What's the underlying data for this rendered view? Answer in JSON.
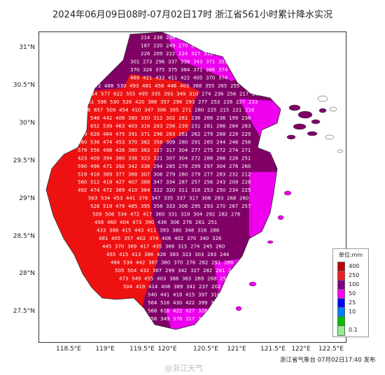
{
  "title": "2024年06月09日08时-07月02日17时 浙江省561小时累计降水实况",
  "axes": {
    "lat_labels": [
      "31°N",
      "30.5°N",
      "30°N",
      "29.5°N",
      "29°N",
      "28.5°N",
      "28°N",
      "27.5°N"
    ],
    "lon_labels": [
      "118.5°E",
      "119°E",
      "119.5°E",
      "120°E",
      "120.5°E",
      "121°E",
      "121.5°E",
      "122°E",
      "122.5°E"
    ]
  },
  "legend": {
    "title": "单位:mm",
    "items": [
      {
        "label": "400",
        "color": "#c00000"
      },
      {
        "label": "250",
        "color": "#f02020"
      },
      {
        "label": "100",
        "color": "#800080"
      },
      {
        "label": "50",
        "color": "#ff00ff"
      },
      {
        "label": "25",
        "color": "#0000ff"
      },
      {
        "label": "10",
        "color": "#0080ff"
      },
      {
        "label": "",
        "color": "#00c000"
      },
      {
        "label": "0.1",
        "color": "#90ee90"
      }
    ]
  },
  "colors": {
    "red": "#ee1111",
    "purple": "#800066",
    "magenta": "#ee00ee",
    "border": "#444444"
  },
  "station_rows": [
    {
      "row": "r31",
      "values": [
        "214",
        "238",
        "236",
        "217",
        "241"
      ]
    },
    {
      "row": "r30.7",
      "values": [
        "187",
        "220",
        "249",
        "270",
        "287",
        "265"
      ]
    },
    {
      "row": "r30.6",
      "values": [
        "226",
        "209",
        "222",
        "224",
        "327",
        "312",
        "356",
        "339"
      ]
    },
    {
      "row": "r30.5",
      "values": [
        "301",
        "273",
        "296",
        "337",
        "338",
        "343",
        "371",
        "351"
      ]
    },
    {
      "row": "r30.45",
      "values": [
        "370",
        "324",
        "375",
        "375",
        "384",
        "371",
        "386",
        "374"
      ]
    },
    {
      "row": "r30.4",
      "values": [
        "469",
        "421",
        "433",
        "411",
        "422",
        "405",
        "370",
        "374"
      ]
    },
    {
      "row": "r30.3",
      "values": [
        "472",
        "488",
        "530",
        "493",
        "481",
        "456",
        "446",
        "403",
        "368",
        "355",
        "265",
        "255",
        "246",
        "257"
      ]
    },
    {
      "row": "r30.2",
      "values": [
        "654",
        "577",
        "622",
        "555",
        "495",
        "335",
        "393",
        "349",
        "310",
        "274",
        "236",
        "256",
        "217",
        "201"
      ]
    },
    {
      "row": "r30.1",
      "values": [
        "651",
        "598",
        "530",
        "526",
        "420",
        "386",
        "357",
        "296",
        "293",
        "277",
        "253",
        "226",
        "227",
        "233"
      ]
    },
    {
      "row": "r30",
      "values": [
        "768",
        "657",
        "509",
        "454",
        "410",
        "347",
        "306",
        "305",
        "271",
        "280",
        "225",
        "215",
        "221",
        "216"
      ]
    },
    {
      "row": "r29.9",
      "values": [
        "695",
        "548",
        "442",
        "406",
        "380",
        "330",
        "312",
        "302",
        "261",
        "236",
        "266",
        "236",
        "199",
        "236"
      ]
    },
    {
      "row": "r29.8",
      "values": [
        "715",
        "652",
        "539",
        "463",
        "403",
        "316",
        "283",
        "256",
        "239",
        "231",
        "281",
        "286",
        "284",
        "283"
      ]
    },
    {
      "row": "r29.7",
      "values": [
        "619",
        "628",
        "464",
        "475",
        "391",
        "371",
        "298",
        "263",
        "261",
        "262",
        "279",
        "268",
        "229",
        "229"
      ]
    },
    {
      "row": "r29.6",
      "values": [
        "580",
        "536",
        "474",
        "453",
        "370",
        "382",
        "356",
        "309",
        "280",
        "291",
        "265",
        "244",
        "246",
        "256"
      ]
    },
    {
      "row": "r29.5",
      "values": [
        "579",
        "556",
        "498",
        "426",
        "380",
        "363",
        "317",
        "317",
        "304",
        "277",
        "275",
        "272",
        "274",
        "271"
      ]
    },
    {
      "row": "r29.4",
      "values": [
        "423",
        "409",
        "394",
        "380",
        "336",
        "323",
        "321",
        "307",
        "304",
        "272",
        "288",
        "266",
        "226",
        "251"
      ]
    },
    {
      "row": "r29.3",
      "values": [
        "590",
        "496",
        "471",
        "392",
        "342",
        "336",
        "294",
        "285",
        "278",
        "299",
        "297",
        "304",
        "276",
        "260"
      ]
    },
    {
      "row": "r29.2",
      "values": [
        "519",
        "418",
        "389",
        "377",
        "368",
        "307",
        "306",
        "279",
        "260",
        "279",
        "277",
        "283",
        "232",
        "212"
      ]
    },
    {
      "row": "r29.1",
      "values": [
        "560",
        "512",
        "419",
        "427",
        "407",
        "388",
        "347",
        "334",
        "287",
        "257",
        "256",
        "243",
        "209",
        "228"
      ]
    },
    {
      "row": "r29",
      "values": [
        "492",
        "474",
        "472",
        "389",
        "410",
        "364",
        "322",
        "320",
        "311",
        "318",
        "253",
        "250",
        "234",
        "225"
      ]
    },
    {
      "row": "r28.9",
      "values": [
        "563",
        "534",
        "453",
        "441",
        "376",
        "347",
        "335",
        "337",
        "317",
        "306",
        "283",
        "268",
        "260"
      ]
    },
    {
      "row": "r28.8",
      "values": [
        "528",
        "519",
        "479",
        "485",
        "395",
        "358",
        "333",
        "306",
        "295",
        "293",
        "270",
        "267",
        "257"
      ]
    },
    {
      "row": "r28.7",
      "values": [
        "509",
        "506",
        "534",
        "472",
        "417",
        "360",
        "331",
        "319",
        "304",
        "292",
        "282",
        "276"
      ]
    },
    {
      "row": "r28.6",
      "values": [
        "456",
        "460",
        "404",
        "473",
        "390",
        "436",
        "306",
        "276",
        "261",
        "251"
      ]
    },
    {
      "row": "r28.5",
      "values": [
        "433",
        "388",
        "415",
        "443",
        "411",
        "393",
        "380",
        "348",
        "316",
        "286"
      ]
    },
    {
      "row": "r28.4",
      "values": [
        "481",
        "405",
        "357",
        "402",
        "374",
        "406",
        "402",
        "370",
        "340",
        "326"
      ]
    },
    {
      "row": "r28.3",
      "values": [
        "445",
        "370",
        "369",
        "417",
        "435",
        "366",
        "315",
        "274",
        "245",
        "260"
      ]
    },
    {
      "row": "r28.2",
      "values": [
        "455",
        "415",
        "413",
        "386",
        "426",
        "383",
        "323",
        "303",
        "283",
        "244"
      ]
    },
    {
      "row": "r28.1",
      "values": [
        "484",
        "534",
        "442",
        "367",
        "360",
        "370",
        "276",
        "282",
        "291",
        "288"
      ]
    },
    {
      "row": "r28",
      "values": [
        "505",
        "504",
        "432",
        "367",
        "299",
        "342",
        "327",
        "282",
        "281",
        "246"
      ]
    },
    {
      "row": "r27.9",
      "values": [
        "473",
        "549",
        "455",
        "403",
        "388",
        "363",
        "269",
        "268",
        "251",
        "245"
      ]
    },
    {
      "row": "r27.8",
      "values": [
        "504",
        "419",
        "414",
        "408",
        "389",
        "341",
        "237",
        "202",
        "171"
      ]
    },
    {
      "row": "r27.7",
      "values": [
        "540",
        "441",
        "418",
        "415",
        "397",
        "316",
        "288",
        "278"
      ]
    },
    {
      "row": "r27.6",
      "values": [
        "564",
        "516",
        "430",
        "422",
        "399",
        "324",
        "289",
        "245",
        "212"
      ]
    },
    {
      "row": "r27.5",
      "values": [
        "568",
        "618",
        "422",
        "427",
        "328",
        "341",
        "301"
      ]
    },
    {
      "row": "r27.4",
      "values": [
        "358",
        "349",
        "376",
        "317",
        "321"
      ]
    }
  ],
  "credit": "浙江省气象台 07月02日17:40 发布",
  "watermark": "@浙江天气"
}
